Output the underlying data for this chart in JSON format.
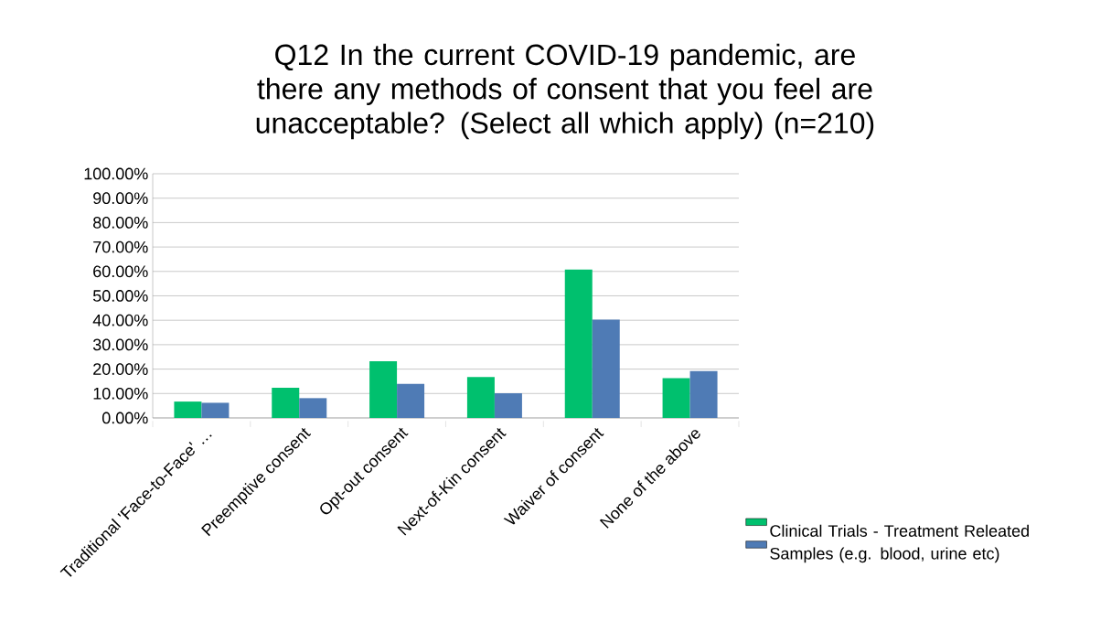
{
  "chart_data": {
    "type": "bar",
    "title": "Q12 In the current COVID-19 pandemic, are there any methods of consent that you feel are unacceptable? (Select all which apply) (n=210)",
    "categories": [
      "Traditional 'Face-to-Face' …",
      "Preemptive consent",
      "Opt-out consent",
      "Next-of-Kin consent",
      "Waiver of consent",
      "None of the above"
    ],
    "series": [
      {
        "name": "Clinical Trials - Treatment Releated",
        "color": "#00c06e",
        "values": [
          6.7,
          12.4,
          23.2,
          16.8,
          60.8,
          16.3
        ]
      },
      {
        "name": "Samples (e.g. blood, urine etc)",
        "color": "#4f7bb5",
        "values": [
          6.2,
          8.1,
          13.9,
          10.1,
          40.3,
          19.2
        ]
      }
    ],
    "ylim": [
      0,
      100
    ],
    "yticks": [
      {
        "value": 0,
        "label": "0.00%"
      },
      {
        "value": 10,
        "label": "10.00%"
      },
      {
        "value": 20,
        "label": "20.00%"
      },
      {
        "value": 30,
        "label": "30.00%"
      },
      {
        "value": 40,
        "label": "40.00%"
      },
      {
        "value": 50,
        "label": "50.00%"
      },
      {
        "value": 60,
        "label": "60.00%"
      },
      {
        "value": 70,
        "label": "70.00%"
      },
      {
        "value": 80,
        "label": "80.00%"
      },
      {
        "value": 90,
        "label": "90.00%"
      },
      {
        "value": 100,
        "label": "100.00%"
      }
    ],
    "grid": "y",
    "legend": "bottom right"
  }
}
